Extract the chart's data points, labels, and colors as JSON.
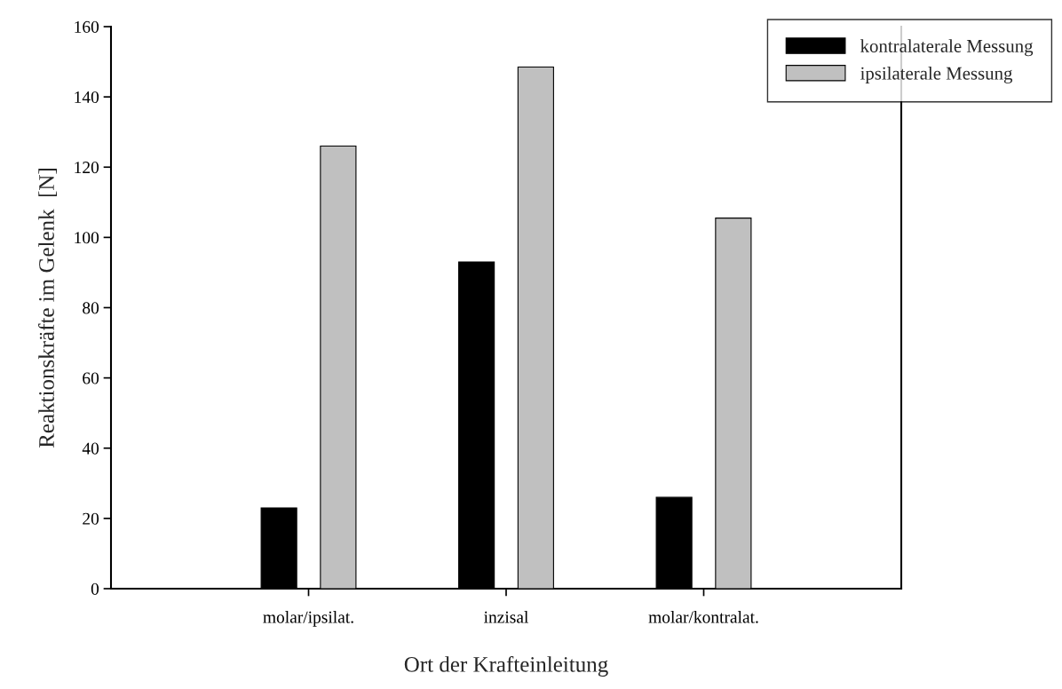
{
  "chart_data": {
    "type": "bar",
    "xlabel": "Ort der Krafteinleitung",
    "ylabel": "Reaktionskräfte im Gelenk  [N]",
    "categories": [
      "molar/ipsilat.",
      "inzisal",
      "molar/kontralat."
    ],
    "series": [
      {
        "name": "kontralaterale Messung",
        "color": "#000000",
        "values": [
          23,
          93,
          26
        ]
      },
      {
        "name": "ipsilaterale Messung",
        "color": "#c0c0c0",
        "values": [
          126,
          148.5,
          105.5
        ]
      }
    ],
    "ylim": [
      0,
      160
    ],
    "yticks": [
      0,
      20,
      40,
      60,
      80,
      100,
      120,
      140,
      160
    ],
    "grid": false,
    "legend": "top right"
  }
}
